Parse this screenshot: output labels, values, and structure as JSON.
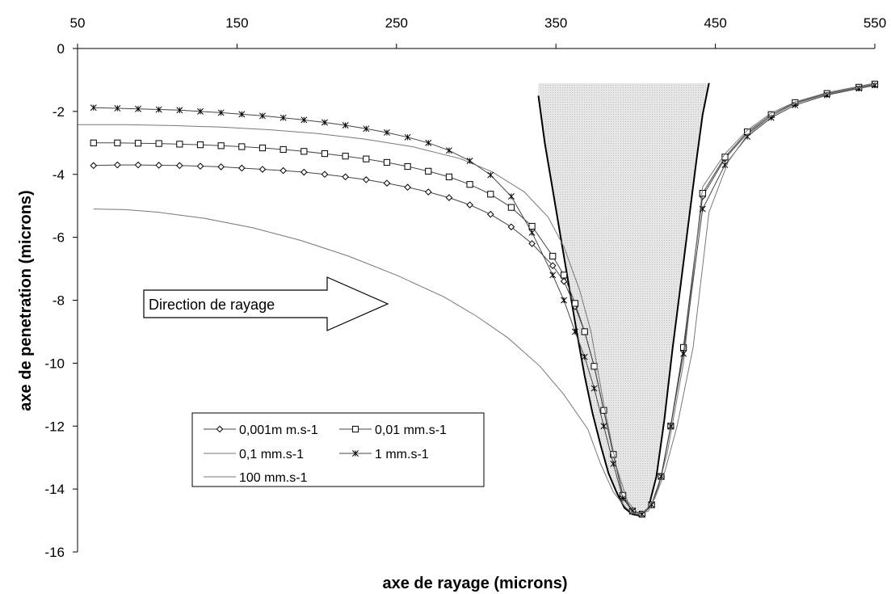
{
  "chart_data": {
    "type": "line",
    "xlabel": "axe de rayage (microns)",
    "ylabel": "axe de penetration (microns)",
    "xlim": [
      50,
      550
    ],
    "ylim": [
      -16,
      0
    ],
    "x_ticks": [
      50,
      150,
      250,
      350,
      450,
      550
    ],
    "y_ticks": [
      0,
      -2,
      -4,
      -6,
      -8,
      -10,
      -12,
      -14,
      -16
    ],
    "x_axis_position": "top",
    "grid": false,
    "legend_position": "bottom-center",
    "annotation": "Direction de rayage",
    "series": [
      {
        "name": "0,001m m.s-1",
        "marker": "diamond",
        "x": [
          60,
          75,
          88,
          101,
          114,
          127,
          140,
          153,
          166,
          179,
          192,
          205,
          218,
          231,
          244,
          257,
          270,
          283,
          296,
          309,
          322,
          335,
          348,
          355,
          362,
          368,
          374,
          380,
          386,
          392,
          398,
          404,
          410,
          416,
          422,
          430,
          442,
          456,
          470,
          485,
          500,
          520,
          540,
          550
        ],
        "y": [
          -3.72,
          -3.7,
          -3.7,
          -3.71,
          -3.72,
          -3.74,
          -3.76,
          -3.8,
          -3.84,
          -3.88,
          -3.93,
          -4.0,
          -4.08,
          -4.17,
          -4.28,
          -4.41,
          -4.56,
          -4.74,
          -4.97,
          -5.27,
          -5.67,
          -6.2,
          -6.9,
          -7.4,
          -8.2,
          -9.0,
          -10.1,
          -11.5,
          -12.9,
          -14.2,
          -14.7,
          -14.8,
          -14.5,
          -13.6,
          -12.0,
          -9.5,
          -4.7,
          -3.5,
          -2.7,
          -2.15,
          -1.75,
          -1.45,
          -1.25,
          -1.15
        ]
      },
      {
        "name": "0,01 mm.s-1",
        "marker": "square",
        "x": [
          60,
          75,
          88,
          101,
          114,
          127,
          140,
          153,
          166,
          179,
          192,
          205,
          218,
          231,
          244,
          257,
          270,
          283,
          296,
          309,
          322,
          335,
          348,
          355,
          362,
          368,
          374,
          380,
          386,
          392,
          398,
          404,
          410,
          416,
          422,
          430,
          442,
          456,
          470,
          485,
          500,
          520,
          540,
          550
        ],
        "y": [
          -3.0,
          -3.0,
          -3.01,
          -3.02,
          -3.04,
          -3.06,
          -3.09,
          -3.12,
          -3.16,
          -3.21,
          -3.27,
          -3.34,
          -3.42,
          -3.51,
          -3.62,
          -3.75,
          -3.9,
          -4.08,
          -4.32,
          -4.63,
          -5.05,
          -5.65,
          -6.6,
          -7.2,
          -8.1,
          -9.0,
          -10.1,
          -11.5,
          -12.9,
          -14.2,
          -14.7,
          -14.8,
          -14.5,
          -13.6,
          -12.0,
          -9.5,
          -4.6,
          -3.45,
          -2.65,
          -2.1,
          -1.72,
          -1.43,
          -1.23,
          -1.13
        ]
      },
      {
        "name": "0,1 mm.s-1",
        "marker": "none",
        "x": [
          50,
          80,
          110,
          140,
          170,
          200,
          230,
          260,
          290,
          310,
          330,
          345,
          355,
          365,
          372,
          380,
          388,
          395,
          402,
          408,
          414,
          420,
          430,
          442,
          456,
          470,
          485,
          500,
          520,
          540,
          550
        ],
        "y": [
          -2.42,
          -2.42,
          -2.45,
          -2.5,
          -2.58,
          -2.7,
          -2.88,
          -3.12,
          -3.5,
          -3.92,
          -4.55,
          -5.35,
          -6.3,
          -7.7,
          -9.0,
          -11.3,
          -13.3,
          -14.4,
          -14.8,
          -14.7,
          -14.0,
          -12.8,
          -10.0,
          -4.4,
          -3.35,
          -2.6,
          -2.05,
          -1.7,
          -1.4,
          -1.2,
          -1.1
        ]
      },
      {
        "name": "1 mm.s-1",
        "marker": "x",
        "x": [
          60,
          75,
          88,
          101,
          114,
          127,
          140,
          153,
          166,
          179,
          192,
          205,
          218,
          231,
          244,
          257,
          270,
          283,
          296,
          309,
          322,
          335,
          348,
          355,
          362,
          368,
          374,
          380,
          386,
          392,
          398,
          404,
          410,
          416,
          422,
          430,
          442,
          456,
          470,
          485,
          500,
          520,
          540,
          550
        ],
        "y": [
          -1.88,
          -1.9,
          -1.92,
          -1.94,
          -1.96,
          -2.0,
          -2.04,
          -2.09,
          -2.14,
          -2.2,
          -2.27,
          -2.35,
          -2.44,
          -2.55,
          -2.67,
          -2.82,
          -3.0,
          -3.24,
          -3.57,
          -4.02,
          -4.7,
          -5.85,
          -7.2,
          -8.0,
          -9.0,
          -9.8,
          -10.8,
          -12.0,
          -13.2,
          -14.3,
          -14.7,
          -14.8,
          -14.5,
          -13.6,
          -12.0,
          -9.7,
          -5.1,
          -3.7,
          -2.8,
          -2.2,
          -1.8,
          -1.48,
          -1.27,
          -1.17
        ]
      },
      {
        "name": "100 mm.s-1",
        "marker": "none",
        "x": [
          60,
          80,
          100,
          130,
          160,
          190,
          220,
          250,
          280,
          300,
          320,
          340,
          355,
          370,
          378,
          386,
          394,
          400,
          406,
          412,
          418,
          426,
          436,
          446,
          458,
          470,
          485,
          500,
          520,
          540,
          550
        ],
        "y": [
          -5.1,
          -5.12,
          -5.2,
          -5.4,
          -5.7,
          -6.1,
          -6.6,
          -7.2,
          -7.9,
          -8.5,
          -9.2,
          -10.1,
          -11.0,
          -12.1,
          -13.2,
          -14.1,
          -14.6,
          -14.8,
          -14.7,
          -14.3,
          -13.5,
          -12.0,
          -9.5,
          -5.2,
          -3.6,
          -2.75,
          -2.15,
          -1.75,
          -1.45,
          -1.25,
          -1.15
        ]
      }
    ],
    "indenter": {
      "left_x": [
        339,
        343,
        348,
        353,
        358,
        363,
        368,
        373,
        378,
        383,
        388,
        393,
        398,
        403
      ],
      "left_y": [
        -1.5,
        -3.0,
        -4.5,
        -6.0,
        -7.5,
        -9.0,
        -10.4,
        -11.6,
        -12.6,
        -13.5,
        -14.1,
        -14.6,
        -14.8,
        -14.85
      ],
      "right_x": [
        403,
        408,
        413,
        418,
        423,
        428,
        433,
        438,
        442,
        446
      ],
      "right_y": [
        -14.85,
        -14.6,
        -13.6,
        -11.8,
        -9.6,
        -7.6,
        -5.6,
        -3.6,
        -2.1,
        -1.1
      ],
      "top_y": -1.1,
      "fill_color": "#e6e6e6"
    }
  }
}
